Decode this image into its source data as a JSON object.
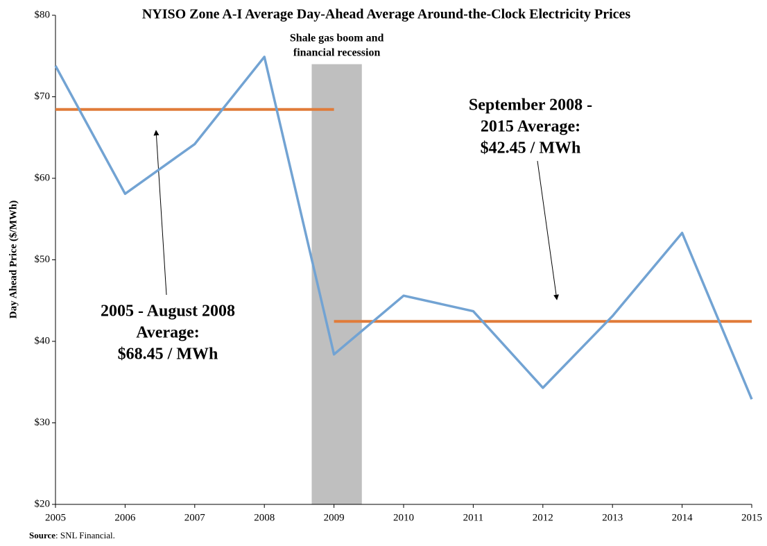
{
  "chart_data": {
    "type": "line",
    "title": "NYISO Zone A-I Average Day-Ahead  Average Around-the-Clock Electricity Prices",
    "y_label": "Day Ahead Price ($/MWh)",
    "x": [
      2005,
      2006,
      2007,
      2008,
      2009,
      2010,
      2011,
      2012,
      2013,
      2014,
      2015
    ],
    "series": [
      {
        "name": "Day Ahead Price",
        "color": "#72a3d3",
        "values": [
          73.8,
          58.1,
          64.2,
          74.9,
          38.4,
          45.6,
          43.7,
          34.3,
          43.1,
          53.3,
          32.9
        ]
      }
    ],
    "reference_lines": [
      {
        "value": 68.45,
        "x": [
          2005,
          2009
        ],
        "color": "#e07b39",
        "label": [
          "2005 - August 2008",
          "Average:",
          "$68.45 / MWh"
        ]
      },
      {
        "value": 42.45,
        "x": [
          2009,
          2015
        ],
        "color": "#e07b39",
        "label": [
          "September 2008 -",
          "2015 Average:",
          "$42.45 / MWh"
        ]
      }
    ],
    "shaded_region": {
      "x": [
        2008.68,
        2009.4
      ],
      "y": [
        20,
        74
      ],
      "color": "#bfbfbf",
      "label": [
        "Shale gas boom and",
        "financial recession"
      ]
    },
    "xlim": [
      2005,
      2015
    ],
    "xticks": [
      2005,
      2006,
      2007,
      2008,
      2009,
      2010,
      2011,
      2012,
      2013,
      2014,
      2015
    ],
    "ylim": [
      20,
      80
    ],
    "yticks": [
      {
        "value": 20,
        "label": "$20"
      },
      {
        "value": 30,
        "label": "$30"
      },
      {
        "value": 40,
        "label": "$40"
      },
      {
        "value": 50,
        "label": "$50"
      },
      {
        "value": 60,
        "label": "$60"
      },
      {
        "value": 70,
        "label": "$70"
      },
      {
        "value": 80,
        "label": "$80"
      }
    ],
    "source_label": "Source",
    "source_text": ": SNL Financial."
  }
}
